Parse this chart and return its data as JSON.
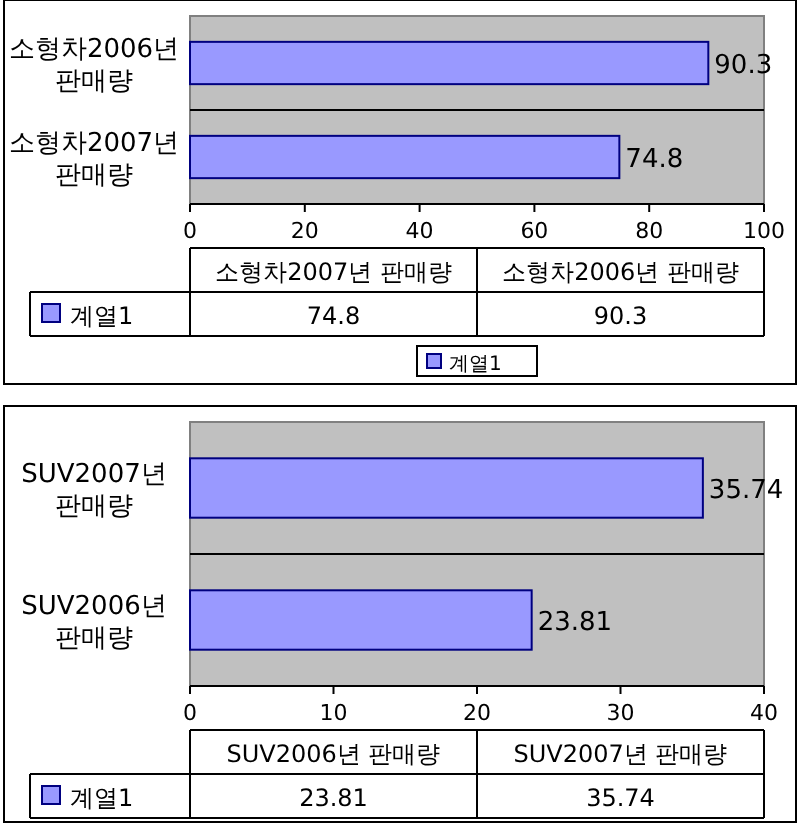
{
  "chart_data": [
    {
      "type": "bar",
      "orientation": "horizontal",
      "categories": [
        "소형차2006년 판매량",
        "소형차2007년 판매량"
      ],
      "series": [
        {
          "name": "계열1",
          "color": "#9999ff",
          "values": [
            90.3,
            74.8
          ],
          "value_labels": [
            "90.3",
            "74.8"
          ]
        }
      ],
      "xlim": [
        0,
        100
      ],
      "xticks": [
        0,
        20,
        40,
        60,
        80,
        100
      ],
      "grid": "y",
      "annotations": [
        "74.8",
        "90.3"
      ],
      "legend": "bottom"
    },
    {
      "type": "bar",
      "orientation": "horizontal",
      "categories": [
        "SUV2007년 판매량",
        "SUV2006년 판매량"
      ],
      "series": [
        {
          "name": "계열1",
          "color": "#9999ff",
          "values": [
            35.74,
            23.81
          ],
          "value_labels": [
            "35.74",
            "23.81"
          ]
        }
      ],
      "xlim": [
        0,
        40
      ],
      "xticks": [
        0,
        10,
        20,
        30,
        40
      ],
      "grid": "y",
      "annotations": [
        "23.81",
        "35.74"
      ]
    }
  ]
}
